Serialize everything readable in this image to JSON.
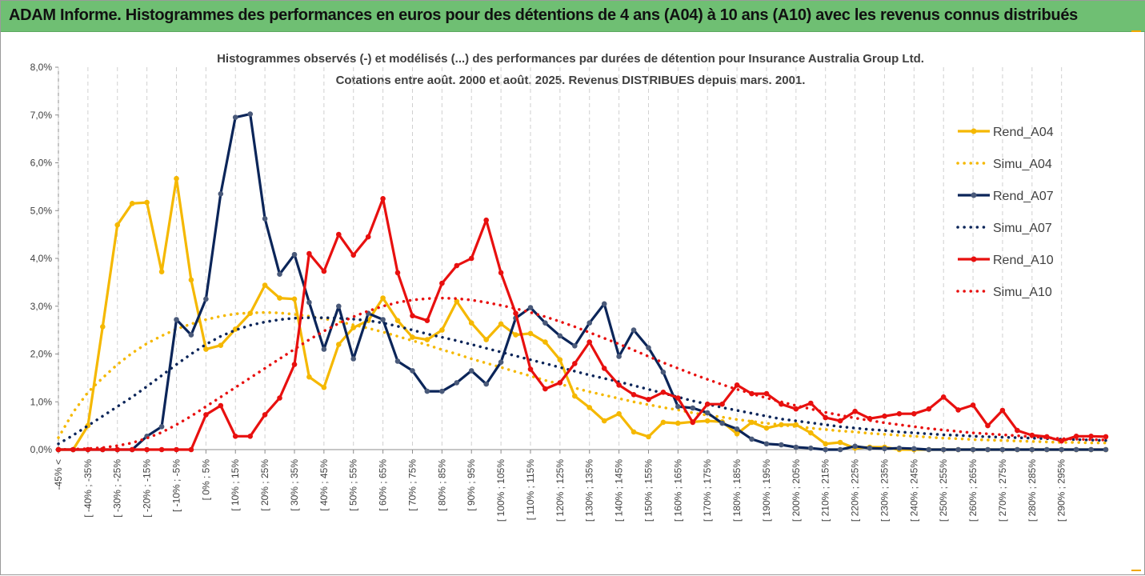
{
  "banner": {
    "title": "ADAM Informe. Histogrammes des performances en euros pour des détentions de 4 ans (A04) à 10 ans (A10) avec les revenus connus distribués"
  },
  "colors": {
    "banner_bg": "#6fbf73",
    "A04": "#f5b800",
    "A07": "#0b2559",
    "A10": "#e8100f"
  },
  "chart_data": {
    "type": "line",
    "title": "Histogrammes observés (-) et modélisés (...) des performances par durées de détention pour Insurance Australia Group Ltd.",
    "subtitle": "Cotations entre août. 2000 et août. 2025. Revenus DISTRIBUES depuis mars. 2001.",
    "xlabel": "",
    "ylabel": "",
    "ylim": [
      0,
      8
    ],
    "y_ticks": [
      "0,0%",
      "1,0%",
      "2,0%",
      "3,0%",
      "4,0%",
      "5,0%",
      "6,0%",
      "7,0%",
      "8,0%"
    ],
    "x_labels": [
      "-45% <",
      "[ -40% ; -35%",
      "[ -30% ; -25%",
      "[ -20% ; -15%",
      "[ -10% ; -5%",
      "[ 0% ; 5%",
      "[ 10% ; 15%",
      "[ 20% ; 25%",
      "[ 30% ; 35%",
      "[ 40% ; 45%",
      "[ 50% ; 55%",
      "[ 60% ; 65%",
      "[ 70% ; 75%",
      "[ 80% ; 85%",
      "[ 90% ; 95%",
      "[ 100% ; 105%",
      "[ 110% ; 115%",
      "[ 120% ; 125%",
      "[ 130% ; 135%",
      "[ 140% ; 145%",
      "[ 150% ; 155%",
      "[ 160% ; 165%",
      "[ 170% ; 175%",
      "[ 180% ; 185%",
      "[ 190% ; 195%",
      "[ 200% ; 205%",
      "[ 210% ; 215%",
      "[ 220% ; 225%",
      "[ 230% ; 235%",
      "[ 240% ; 245%",
      "[ 250% ; 255%",
      "[ 260% ; 265%",
      "[ 270% ; 275%",
      "[ 280% ; 285%",
      "[ 290% ; 295%"
    ],
    "grid": "vertical dashed",
    "legend": "right",
    "series": [
      {
        "name": "Rend_A04",
        "style": "solid",
        "color": "#f5b800",
        "values": [
          0,
          0,
          0.5,
          2.57,
          4.7,
          5.15,
          5.17,
          3.72,
          5.67,
          3.55,
          2.1,
          2.18,
          2.52,
          2.85,
          3.44,
          3.17,
          3.15,
          1.52,
          1.3,
          2.2,
          2.55,
          2.7,
          3.17,
          2.7,
          2.35,
          2.3,
          2.5,
          3.1,
          2.65,
          2.3,
          2.63,
          2.4,
          2.43,
          2.25,
          1.88,
          1.12,
          0.88,
          0.6,
          0.75,
          0.37,
          0.27,
          0.57,
          0.55,
          0.58,
          0.6,
          0.58,
          0.33,
          0.57,
          0.45,
          0.52,
          0.52,
          0.35,
          0.12,
          0.15,
          0.03,
          0.05,
          0.05,
          0,
          0,
          0,
          0,
          0,
          0,
          0,
          0,
          0,
          0,
          0,
          0,
          0,
          0,
          0
        ]
      },
      {
        "name": "Simu_A04",
        "style": "dotted",
        "color": "#f5b800",
        "values": [
          0.25,
          0.78,
          1.2,
          1.5,
          1.78,
          2.02,
          2.22,
          2.38,
          2.52,
          2.63,
          2.72,
          2.79,
          2.84,
          2.86,
          2.87,
          2.86,
          2.83,
          2.79,
          2.74,
          2.68,
          2.61,
          2.54,
          2.46,
          2.37,
          2.28,
          2.19,
          2.09,
          2.0,
          1.9,
          1.81,
          1.72,
          1.63,
          1.54,
          1.45,
          1.37,
          1.29,
          1.21,
          1.14,
          1.07,
          1.0,
          0.94,
          0.88,
          0.83,
          0.77,
          0.72,
          0.68,
          0.63,
          0.59,
          0.55,
          0.52,
          0.48,
          0.45,
          0.42,
          0.39,
          0.37,
          0.34,
          0.32,
          0.3,
          0.28,
          0.26,
          0.24,
          0.23,
          0.21,
          0.2,
          0.19,
          0.18,
          0.17,
          0.16,
          0.15,
          0.15,
          0.14,
          0.14
        ]
      },
      {
        "name": "Rend_A07",
        "style": "solid",
        "color": "#0b2559",
        "values": [
          0,
          0,
          0,
          0,
          0,
          0,
          0.28,
          0.48,
          2.72,
          2.4,
          3.15,
          5.35,
          6.95,
          7.02,
          4.83,
          3.67,
          4.08,
          3.08,
          2.1,
          3.0,
          1.9,
          2.85,
          2.72,
          1.85,
          1.65,
          1.22,
          1.22,
          1.4,
          1.65,
          1.37,
          1.83,
          2.75,
          2.97,
          2.65,
          2.38,
          2.17,
          2.65,
          3.05,
          1.95,
          2.5,
          2.13,
          1.62,
          0.9,
          0.87,
          0.77,
          0.55,
          0.43,
          0.22,
          0.12,
          0.1,
          0.05,
          0.03,
          0,
          0,
          0.07,
          0.03,
          0.02,
          0.03,
          0.02,
          0,
          0,
          0,
          0,
          0,
          0,
          0,
          0,
          0,
          0,
          0,
          0,
          0
        ]
      },
      {
        "name": "Simu_A07",
        "style": "dotted",
        "color": "#0b2559",
        "values": [
          0.12,
          0.3,
          0.5,
          0.7,
          0.9,
          1.1,
          1.32,
          1.55,
          1.78,
          2.0,
          2.2,
          2.37,
          2.5,
          2.6,
          2.67,
          2.72,
          2.75,
          2.76,
          2.76,
          2.75,
          2.73,
          2.7,
          2.65,
          2.58,
          2.5,
          2.42,
          2.35,
          2.28,
          2.2,
          2.12,
          2.04,
          1.96,
          1.88,
          1.8,
          1.72,
          1.64,
          1.56,
          1.49,
          1.42,
          1.34,
          1.26,
          1.18,
          1.1,
          1.02,
          0.95,
          0.88,
          0.82,
          0.76,
          0.7,
          0.64,
          0.6,
          0.56,
          0.52,
          0.48,
          0.45,
          0.42,
          0.4,
          0.37,
          0.35,
          0.33,
          0.31,
          0.3,
          0.28,
          0.27,
          0.26,
          0.25,
          0.24,
          0.23,
          0.22,
          0.21,
          0.2,
          0.19
        ]
      },
      {
        "name": "Rend_A10",
        "style": "solid",
        "color": "#e8100f",
        "values": [
          0,
          0,
          0,
          0,
          0,
          0,
          0,
          0,
          0,
          0,
          0.73,
          0.92,
          0.28,
          0.28,
          0.73,
          1.08,
          1.78,
          4.1,
          3.73,
          4.5,
          4.07,
          4.45,
          5.25,
          3.7,
          2.8,
          2.7,
          3.48,
          3.85,
          4.0,
          4.8,
          3.7,
          2.85,
          1.68,
          1.27,
          1.4,
          1.8,
          2.25,
          1.7,
          1.35,
          1.15,
          1.05,
          1.2,
          1.08,
          0.57,
          0.95,
          0.95,
          1.35,
          1.17,
          1.17,
          0.95,
          0.85,
          0.97,
          0.67,
          0.6,
          0.8,
          0.65,
          0.7,
          0.75,
          0.75,
          0.85,
          1.1,
          0.83,
          0.93,
          0.5,
          0.82,
          0.4,
          0.3,
          0.27,
          0.18,
          0.28,
          0.28,
          0.27
        ]
      },
      {
        "name": "Simu_A10",
        "style": "dotted",
        "color": "#e8100f",
        "values": [
          0,
          0.01,
          0.02,
          0.04,
          0.08,
          0.14,
          0.24,
          0.36,
          0.52,
          0.7,
          0.9,
          1.1,
          1.3,
          1.5,
          1.7,
          1.9,
          2.1,
          2.3,
          2.48,
          2.64,
          2.78,
          2.9,
          3.0,
          3.08,
          3.13,
          3.16,
          3.17,
          3.16,
          3.13,
          3.08,
          3.02,
          2.95,
          2.87,
          2.78,
          2.68,
          2.57,
          2.45,
          2.33,
          2.21,
          2.08,
          1.95,
          1.82,
          1.7,
          1.58,
          1.47,
          1.36,
          1.26,
          1.17,
          1.08,
          1.0,
          0.92,
          0.85,
          0.78,
          0.72,
          0.66,
          0.61,
          0.56,
          0.52,
          0.48,
          0.44,
          0.41,
          0.38,
          0.35,
          0.33,
          0.31,
          0.29,
          0.27,
          0.25,
          0.23,
          0.22,
          0.21,
          0.2
        ]
      }
    ]
  }
}
